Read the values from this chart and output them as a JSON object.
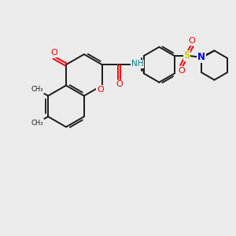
{
  "background_color": "#ebebeb",
  "bond_color": "#1a1a1a",
  "oxygen_color": "#ff0000",
  "nitrogen_color": "#0000ee",
  "sulfur_color": "#cccc00",
  "nh_color": "#008080",
  "figsize": [
    3.0,
    3.0
  ],
  "dpi": 100,
  "xlim": [
    0,
    10
  ],
  "ylim": [
    0,
    10
  ]
}
